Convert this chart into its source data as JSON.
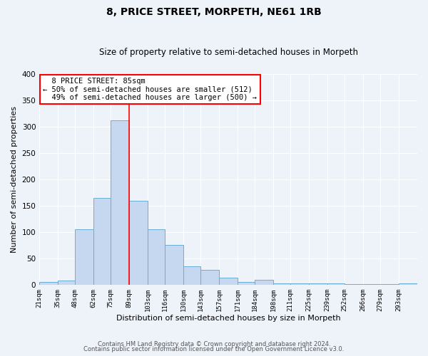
{
  "title": "8, PRICE STREET, MORPETH, NE61 1RB",
  "subtitle": "Size of property relative to semi-detached houses in Morpeth",
  "xlabel": "Distribution of semi-detached houses by size in Morpeth",
  "ylabel": "Number of semi-detached properties",
  "bar_labels": [
    "21sqm",
    "35sqm",
    "48sqm",
    "62sqm",
    "75sqm",
    "89sqm",
    "103sqm",
    "116sqm",
    "130sqm",
    "143sqm",
    "157sqm",
    "171sqm",
    "184sqm",
    "198sqm",
    "211sqm",
    "225sqm",
    "239sqm",
    "252sqm",
    "266sqm",
    "279sqm",
    "293sqm"
  ],
  "bar_values": [
    5,
    8,
    105,
    165,
    313,
    160,
    105,
    75,
    35,
    28,
    13,
    5,
    9,
    2,
    2,
    2,
    2,
    1,
    1,
    1,
    2
  ],
  "bar_color": "#c5d8f0",
  "bar_edge_color": "#6aaed6",
  "red_line_label": "89sqm",
  "property_label": "8 PRICE STREET: 85sqm",
  "smaller_pct": 50,
  "smaller_count": 512,
  "larger_pct": 49,
  "larger_count": 500,
  "ylim": [
    0,
    400
  ],
  "yticks": [
    0,
    50,
    100,
    150,
    200,
    250,
    300,
    350,
    400
  ],
  "background_color": "#eef2f9",
  "plot_bg_color": "#eef2f9",
  "grid_color": "#ffffff",
  "footer1": "Contains HM Land Registry data © Crown copyright and database right 2024.",
  "footer2": "Contains public sector information licensed under the Open Government Licence v3.0."
}
